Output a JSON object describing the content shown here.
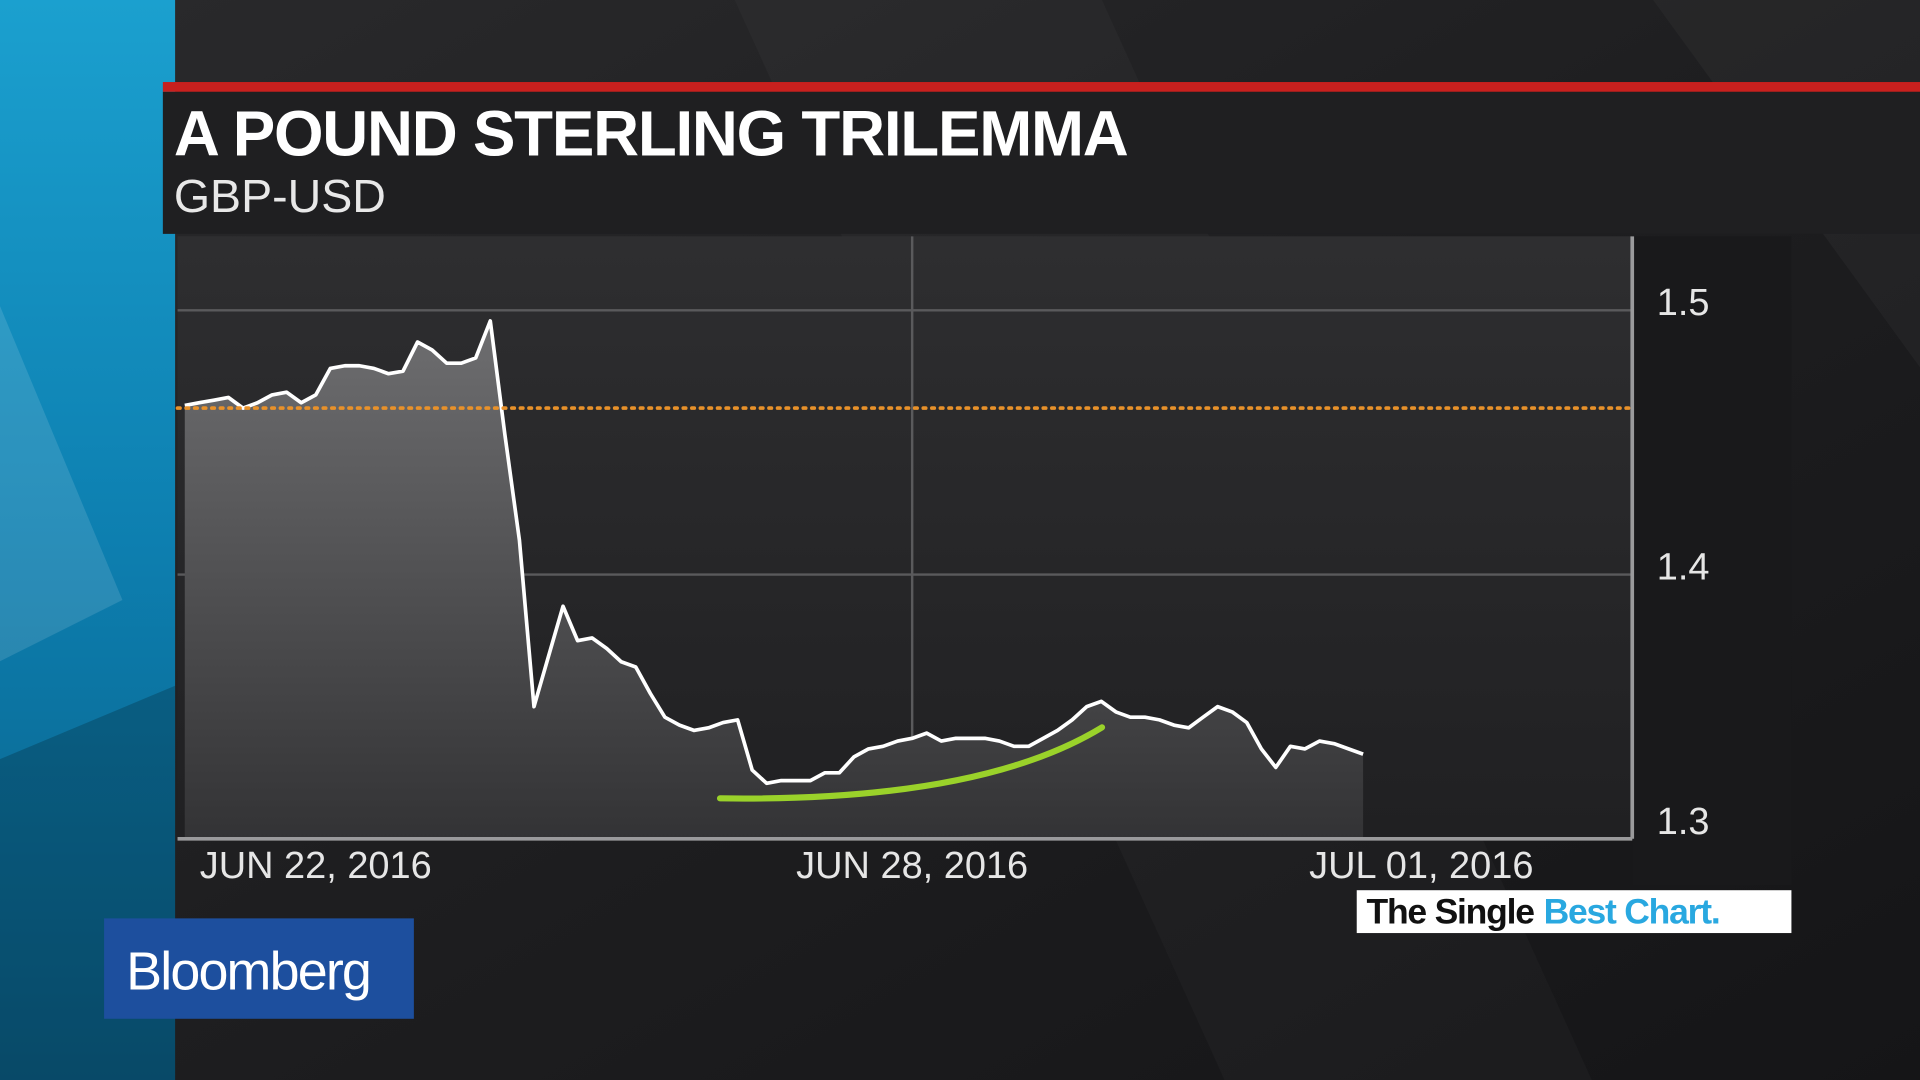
{
  "chart_data": {
    "type": "line",
    "title": "A POUND STERLING TRILEMMA",
    "subtitle": "GBP-USD",
    "categories": [
      null,
      null,
      null,
      null,
      null,
      null,
      null,
      null,
      null,
      "JUN 22, 2016",
      null,
      null,
      null,
      null,
      null,
      null,
      null,
      null,
      null,
      null,
      null,
      null,
      null,
      null,
      null,
      null,
      null,
      null,
      null,
      null,
      null,
      null,
      null,
      null,
      null,
      null,
      null,
      null,
      null,
      null,
      null,
      null,
      null,
      null,
      null,
      null,
      null,
      null,
      null,
      null,
      "JUN 28, 2016",
      null,
      null,
      null,
      null,
      null,
      null,
      null,
      null,
      null,
      null,
      null,
      null,
      null,
      null,
      null,
      null,
      null,
      null,
      null,
      null,
      null,
      null,
      null,
      null,
      null,
      null,
      null,
      null,
      null,
      null,
      null,
      null,
      null,
      null,
      "JUL 01, 2016",
      null,
      null,
      null,
      null,
      null,
      null,
      null,
      null,
      null,
      null,
      null,
      null,
      null,
      null
    ],
    "series": [
      {
        "name": "GBP-USD",
        "color": "#ffffff",
        "values": [
          1.464,
          1.465,
          1.466,
          1.467,
          1.463,
          1.465,
          1.468,
          1.469,
          1.465,
          1.468,
          1.478,
          1.479,
          1.479,
          1.478,
          1.476,
          1.477,
          1.488,
          1.485,
          1.48,
          1.48,
          1.482,
          1.496,
          1.453,
          1.413,
          1.35,
          1.369,
          1.388,
          1.375,
          1.376,
          1.372,
          1.367,
          1.365,
          1.355,
          1.346,
          1.343,
          1.341,
          1.342,
          1.344,
          1.345,
          1.326,
          1.321,
          1.322,
          1.322,
          1.322,
          1.325,
          1.325,
          1.331,
          1.334,
          1.335,
          1.337,
          1.338,
          1.34,
          1.337,
          1.338,
          1.338,
          1.338,
          1.337,
          1.335,
          1.335,
          1.338,
          1.341,
          1.345,
          1.35,
          1.352,
          1.348,
          1.346,
          1.346,
          1.345,
          1.343,
          1.342,
          1.346,
          1.35,
          1.348,
          1.344,
          1.334,
          1.327,
          1.335,
          1.334,
          1.337,
          1.336,
          1.334,
          1.332,
          null,
          null,
          null,
          null,
          null,
          null,
          null,
          null,
          null,
          null,
          null,
          null,
          null,
          null,
          null,
          null,
          null,
          null
        ]
      }
    ],
    "reference_line": {
      "value": 1.463,
      "color": "#e8912a"
    },
    "ylim": [
      1.3,
      1.528
    ],
    "yticks": [
      1.3,
      1.4,
      1.5
    ],
    "grid": true,
    "x_grid_at": "JUN 28, 2016"
  },
  "branding": {
    "logo": "Bloomberg",
    "tagline_first": "The Single",
    "tagline_second": "Best Chart."
  }
}
